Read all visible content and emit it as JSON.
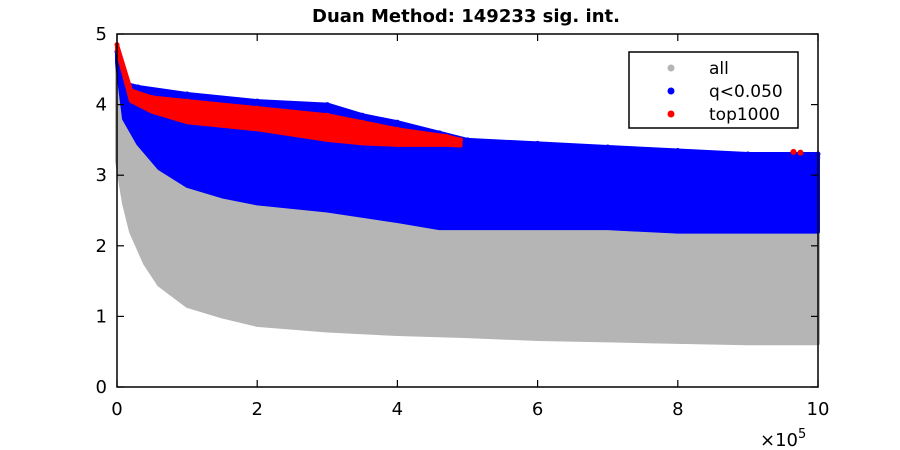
{
  "chart_data": {
    "type": "scatter",
    "title": "Duan Method: 149233 sig. int.",
    "xlabel": "",
    "ylabel": "",
    "xlim": [
      0,
      1000000
    ],
    "ylim": [
      0,
      5
    ],
    "x_ticks": [
      0,
      200000,
      400000,
      600000,
      800000,
      1000000
    ],
    "x_tick_labels": [
      "0",
      "2",
      "4",
      "6",
      "8",
      "10"
    ],
    "x_exponent_label": "×10",
    "x_exponent_power": "5",
    "y_ticks": [
      0,
      1,
      2,
      3,
      4,
      5
    ],
    "y_tick_labels": [
      "0",
      "1",
      "2",
      "3",
      "4",
      "5"
    ],
    "grid": false,
    "legend_position": "top-right",
    "series": [
      {
        "name": "all",
        "color": "#b5b5b5",
        "upper_envelope": [
          [
            0,
            4.75
          ],
          [
            10000,
            4.3
          ],
          [
            30000,
            4.2
          ],
          [
            100000,
            4.1
          ],
          [
            200000,
            4.0
          ],
          [
            300000,
            3.9
          ],
          [
            400000,
            3.75
          ],
          [
            460000,
            3.5
          ],
          [
            600000,
            3.35
          ],
          [
            800000,
            3.3
          ],
          [
            1000000,
            3.25
          ]
        ],
        "lower_envelope": [
          [
            0,
            3.2
          ],
          [
            10000,
            2.6
          ],
          [
            20000,
            2.2
          ],
          [
            40000,
            1.75
          ],
          [
            60000,
            1.45
          ],
          [
            100000,
            1.15
          ],
          [
            150000,
            1.0
          ],
          [
            200000,
            0.88
          ],
          [
            300000,
            0.8
          ],
          [
            400000,
            0.75
          ],
          [
            500000,
            0.72
          ],
          [
            600000,
            0.68
          ],
          [
            700000,
            0.66
          ],
          [
            800000,
            0.64
          ],
          [
            900000,
            0.62
          ],
          [
            1000000,
            0.62
          ]
        ]
      },
      {
        "name": "q<0.050",
        "color": "#0000ff",
        "upper_envelope": [
          [
            0,
            4.75
          ],
          [
            10000,
            4.3
          ],
          [
            30000,
            4.25
          ],
          [
            100000,
            4.15
          ],
          [
            200000,
            4.05
          ],
          [
            300000,
            4.0
          ],
          [
            350000,
            3.85
          ],
          [
            400000,
            3.75
          ],
          [
            460000,
            3.6
          ],
          [
            500000,
            3.5
          ],
          [
            600000,
            3.45
          ],
          [
            700000,
            3.4
          ],
          [
            800000,
            3.35
          ],
          [
            900000,
            3.3
          ],
          [
            1000000,
            3.3
          ]
        ],
        "lower_envelope": [
          [
            0,
            4.6
          ],
          [
            10000,
            3.8
          ],
          [
            30000,
            3.45
          ],
          [
            60000,
            3.1
          ],
          [
            100000,
            2.85
          ],
          [
            150000,
            2.7
          ],
          [
            200000,
            2.6
          ],
          [
            300000,
            2.5
          ],
          [
            400000,
            2.35
          ],
          [
            460000,
            2.25
          ],
          [
            600000,
            2.25
          ],
          [
            700000,
            2.25
          ],
          [
            800000,
            2.2
          ],
          [
            900000,
            2.2
          ],
          [
            1000000,
            2.2
          ]
        ]
      },
      {
        "name": "top1000",
        "color": "#ff0000",
        "upper_envelope": [
          [
            0,
            4.85
          ],
          [
            20000,
            4.2
          ],
          [
            50000,
            4.1
          ],
          [
            100000,
            4.05
          ],
          [
            200000,
            3.95
          ],
          [
            300000,
            3.85
          ],
          [
            350000,
            3.75
          ],
          [
            400000,
            3.65
          ],
          [
            470000,
            3.55
          ],
          [
            490000,
            3.5
          ]
        ],
        "lower_envelope": [
          [
            0,
            4.78
          ],
          [
            20000,
            4.05
          ],
          [
            50000,
            3.9
          ],
          [
            100000,
            3.75
          ],
          [
            200000,
            3.65
          ],
          [
            300000,
            3.5
          ],
          [
            350000,
            3.45
          ],
          [
            400000,
            3.43
          ],
          [
            470000,
            3.43
          ],
          [
            490000,
            3.42
          ]
        ],
        "outliers": [
          [
            965000,
            3.33
          ],
          [
            975000,
            3.32
          ]
        ]
      }
    ]
  }
}
